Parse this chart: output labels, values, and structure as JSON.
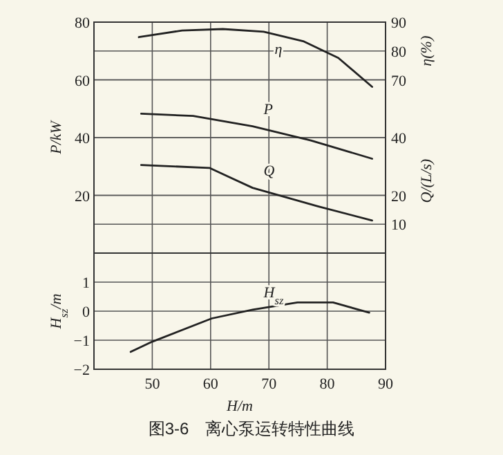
{
  "chart_data": [
    {
      "type": "line",
      "color": "#222222",
      "grid": true,
      "tick_labels": "y",
      "xlim": [
        40,
        90
      ],
      "xticks": [
        50,
        60,
        70,
        80,
        90
      ],
      "ylim": [
        0,
        80
      ],
      "yticks": [
        20,
        40,
        60,
        80
      ],
      "y2lim": [
        10,
        90
      ],
      "y2ticks": [
        70,
        80,
        90
      ],
      "y3lim": [
        0,
        80
      ],
      "y3ticks": [
        10,
        20,
        40
      ],
      "ylabel": "P/kW",
      "y2label": "η(%)",
      "y3label": "Q/(L/s)",
      "series": [
        {
          "name": "η",
          "axis": "y2",
          "x": [
            47.7,
            55.1,
            62.1,
            69.1,
            76.0,
            81.9,
            87.7
          ],
          "values": [
            84.8,
            87.1,
            87.6,
            86.7,
            83.3,
            77.6,
            67.6
          ]
        },
        {
          "name": "P",
          "x": [
            48.1,
            57,
            67.2,
            77.2,
            87.7
          ],
          "values": [
            48.3,
            47.5,
            43.9,
            39,
            32.7
          ]
        },
        {
          "name": "Q",
          "axis": "y3",
          "x": [
            48.1,
            59.8,
            67.2,
            78.4,
            87.7
          ],
          "values": [
            30.5,
            29.5,
            22.6,
            16.2,
            11.3
          ]
        }
      ]
    },
    {
      "type": "line",
      "color": "#222222",
      "grid": true,
      "xlim": [
        40,
        90
      ],
      "xticks": [
        50,
        60,
        70,
        80,
        90
      ],
      "ylim": [
        -2,
        2
      ],
      "yticks": [
        {
          "value": -2,
          "label": "−2"
        },
        {
          "value": -1,
          "label": "−1"
        },
        0,
        1
      ],
      "xlabel": "H/m",
      "ylabel": "H$_{sz}$/m",
      "annotations": [
        "图3-6　离心泵运转特性曲线"
      ],
      "series": [
        {
          "name": "H$_{sz}$",
          "x": [
            46.3,
            50,
            60.2,
            67.2,
            74.9,
            81,
            87.2
          ],
          "values": [
            -1.4,
            -1.05,
            -0.25,
            0.05,
            0.3,
            0.3,
            -0.05
          ]
        }
      ]
    }
  ]
}
